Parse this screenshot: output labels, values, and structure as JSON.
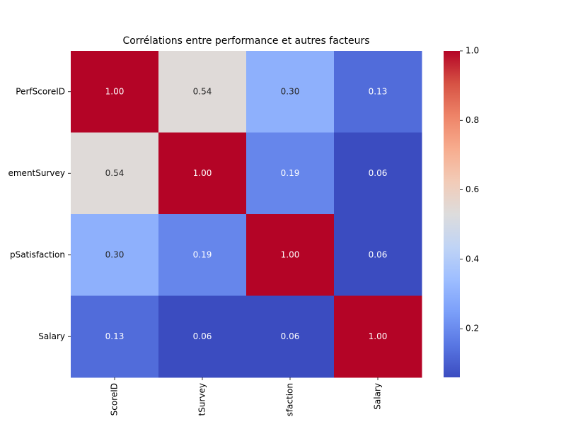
{
  "chart_data": {
    "type": "heatmap",
    "title": "Corrélations entre performance et autres facteurs",
    "x_labels": [
      "ScoreID",
      "tSurvey",
      "sfaction",
      "Salary"
    ],
    "y_labels": [
      "PerfScoreID",
      "ementSurvey",
      "pSatisfaction",
      "Salary"
    ],
    "values": [
      [
        1,
        0.54,
        0.3,
        0.13
      ],
      [
        0.54,
        1,
        0.19,
        0.06
      ],
      [
        0.3,
        0.19,
        1,
        0.06
      ],
      [
        0.13,
        0.06,
        0.06,
        1
      ]
    ],
    "value_labels": [
      [
        "1.00",
        "0.54",
        "0.30",
        "0.13"
      ],
      [
        "0.54",
        "1.00",
        "0.19",
        "0.06"
      ],
      [
        "0.30",
        "0.19",
        "1.00",
        "0.06"
      ],
      [
        "0.13",
        "0.06",
        "0.06",
        "1.00"
      ]
    ],
    "cmap": "coolwarm",
    "clim": [
      0.06,
      1
    ],
    "cticks": [
      0.2,
      0.4,
      0.6,
      0.8,
      {
        "value": 1,
        "label": "1.0"
      }
    ]
  }
}
